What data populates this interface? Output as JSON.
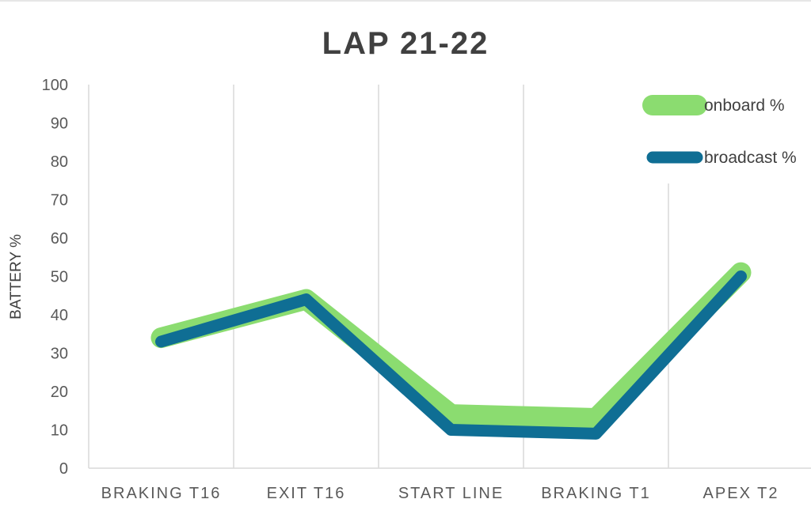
{
  "chart_data": {
    "type": "line",
    "title": "LAP 21-22",
    "xlabel": "",
    "ylabel": "BATTERY %",
    "ylim": [
      0,
      100
    ],
    "yticks": [
      "0",
      "10",
      "20",
      "30",
      "40",
      "50",
      "60",
      "70",
      "80",
      "90",
      "100"
    ],
    "categories": [
      "BRAKING T16",
      "EXIT T16",
      "START LINE",
      "BRAKING T1",
      "APEX T2"
    ],
    "series": [
      {
        "name": "onboard %",
        "values": [
          34,
          44,
          14,
          13,
          51
        ],
        "color": "#8bdc70"
      },
      {
        "name": "broadcast %",
        "values": [
          33,
          44,
          10,
          9,
          50
        ],
        "color": "#0f6e94"
      }
    ],
    "grid": "vertical",
    "legend_position": "top-right"
  }
}
